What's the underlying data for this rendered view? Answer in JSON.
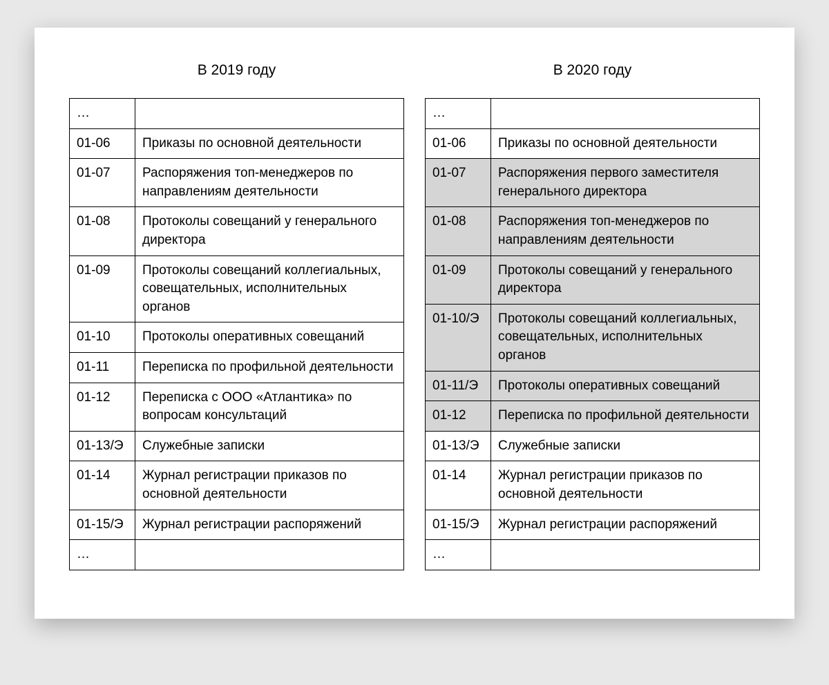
{
  "page_bg": "#e8e8e8",
  "card_bg": "#ffffff",
  "highlight_bg": "#d5d5d5",
  "border_color": "#000000",
  "font_size_title": 21,
  "font_size_cell": 19,
  "tables": [
    {
      "title": "В 2019 году",
      "rows": [
        {
          "code": "…",
          "text": "",
          "hl": false
        },
        {
          "code": "01-06",
          "text": "Приказы по основной деятельности",
          "hl": false
        },
        {
          "code": "01-07",
          "text": "Распоряжения топ-менеджеров по направлениям деятельности",
          "hl": false
        },
        {
          "code": "01-08",
          "text": "Протоколы совещаний у генерального директора",
          "hl": false
        },
        {
          "code": "01-09",
          "text": "Протоколы совещаний коллегиальных, совещательных, исполнительных органов",
          "hl": false
        },
        {
          "code": "01-10",
          "text": "Протоколы оперативных совещаний",
          "hl": false
        },
        {
          "code": "01-11",
          "text": "Переписка по профильной деятельности",
          "hl": false
        },
        {
          "code": "01-12",
          "text": "Переписка с ООО «Атлантика» по вопросам консультаций",
          "hl": false
        },
        {
          "code": "01-13/Э",
          "text": "Служебные записки",
          "hl": false
        },
        {
          "code": "01-14",
          "text": "Журнал регистрации приказов по основной деятельности",
          "hl": false
        },
        {
          "code": "01-15/Э",
          "text": "Журнал регистрации распоряжений",
          "hl": false
        },
        {
          "code": "…",
          "text": "",
          "hl": false
        }
      ]
    },
    {
      "title": "В 2020 году",
      "rows": [
        {
          "code": "…",
          "text": "",
          "hl": false
        },
        {
          "code": "01-06",
          "text": "Приказы по основной деятельности",
          "hl": false
        },
        {
          "code": "01-07",
          "text": "Распоряжения первого заместителя генерального директора",
          "hl": true
        },
        {
          "code": "01-08",
          "text": "Распоряжения топ-менеджеров по направлениям деятельности",
          "hl": true
        },
        {
          "code": "01-09",
          "text": "Протоколы совещаний у генерального директора",
          "hl": true
        },
        {
          "code": "01-10/Э",
          "text": "Протоколы совещаний коллегиальных, совещательных, исполнительных органов",
          "hl": true
        },
        {
          "code": "01-11/Э",
          "text": "Протоколы оперативных совещаний",
          "hl": true
        },
        {
          "code": "01-12",
          "text": "Переписка по профильной деятельности",
          "hl": true
        },
        {
          "code": "01-13/Э",
          "text": "Служебные записки",
          "hl": false
        },
        {
          "code": "01-14",
          "text": "Журнал регистрации приказов по основной деятельности",
          "hl": false
        },
        {
          "code": "01-15/Э",
          "text": "Журнал регистрации распоряжений",
          "hl": false
        },
        {
          "code": "…",
          "text": "",
          "hl": false
        }
      ]
    }
  ]
}
